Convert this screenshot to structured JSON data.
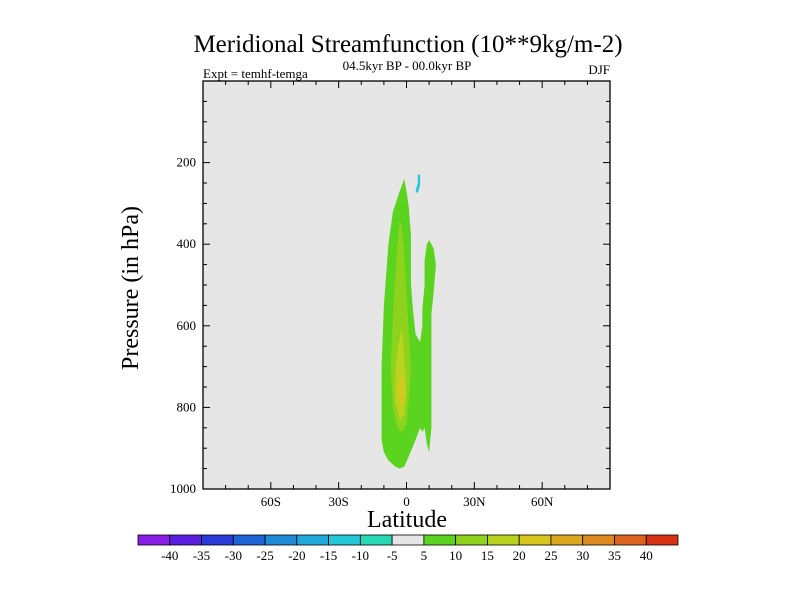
{
  "chart_data": {
    "type": "contour",
    "title": "Meridional Streamfunction (10**9kg/m-2)",
    "subtitle_left": "Expt = temhf-temga",
    "subtitle_center": "04.5kyr BP - 00.0kyr BP",
    "subtitle_right": "DJF",
    "xlabel": "Latitude",
    "ylabel": "Pressure (in hPa)",
    "xlim": [
      -90,
      90
    ],
    "ylim": [
      1000,
      0
    ],
    "x_ticks": [
      {
        "value": -60,
        "label": "60S"
      },
      {
        "value": -30,
        "label": "30S"
      },
      {
        "value": 0,
        "label": "0"
      },
      {
        "value": 30,
        "label": "30N"
      },
      {
        "value": 60,
        "label": "60N"
      }
    ],
    "y_ticks": [
      {
        "value": 200,
        "label": "200"
      },
      {
        "value": 400,
        "label": "400"
      },
      {
        "value": 600,
        "label": "600"
      },
      {
        "value": 800,
        "label": "800"
      },
      {
        "value": 1000,
        "label": "1000"
      }
    ],
    "colorbar": {
      "labels": [
        "-40",
        "-35",
        "-30",
        "-25",
        "-20",
        "-15",
        "-10",
        "-5",
        "5",
        "10",
        "15",
        "20",
        "25",
        "30",
        "35",
        "40"
      ],
      "colors": [
        "#8a1ee6",
        "#5a1ee0",
        "#2a3ad8",
        "#1e64d6",
        "#1e8ad8",
        "#20aadc",
        "#22c8d6",
        "#28d8b4",
        "#e6e6e6",
        "#5ad41e",
        "#8ed21e",
        "#b8d41e",
        "#d8c81e",
        "#dca81e",
        "#dc8a1e",
        "#dc641e",
        "#d83214"
      ]
    },
    "background_level_color": "#e6e6e6",
    "regions": [
      {
        "level": "5 to 10",
        "color": "#5ad41e",
        "points": [
          [
            -3,
            270
          ],
          [
            -1,
            240
          ],
          [
            0,
            270
          ],
          [
            1,
            310
          ],
          [
            2,
            380
          ],
          [
            2,
            500
          ],
          [
            3,
            570
          ],
          [
            4,
            620
          ],
          [
            6,
            640
          ],
          [
            7,
            600
          ],
          [
            7,
            560
          ],
          [
            8,
            500
          ],
          [
            8,
            440
          ],
          [
            9,
            400
          ],
          [
            10,
            390
          ],
          [
            12,
            410
          ],
          [
            13,
            450
          ],
          [
            12,
            520
          ],
          [
            11,
            570
          ],
          [
            11,
            680
          ],
          [
            11,
            780
          ],
          [
            11,
            850
          ],
          [
            10,
            910
          ],
          [
            9,
            890
          ],
          [
            8,
            850
          ],
          [
            7,
            860
          ],
          [
            6,
            850
          ],
          [
            4,
            880
          ],
          [
            1,
            920
          ],
          [
            -1,
            945
          ],
          [
            -3,
            950
          ],
          [
            -5,
            945
          ],
          [
            -8,
            930
          ],
          [
            -10,
            910
          ],
          [
            -11,
            880
          ],
          [
            -11,
            800
          ],
          [
            -11,
            700
          ],
          [
            -10,
            550
          ],
          [
            -8,
            400
          ],
          [
            -6,
            320
          ]
        ]
      },
      {
        "level": "10 to 15",
        "color": "#8ed21e",
        "points": [
          [
            -3,
            340
          ],
          [
            -2,
            360
          ],
          [
            -1,
            420
          ],
          [
            0,
            520
          ],
          [
            1,
            620
          ],
          [
            2,
            700
          ],
          [
            1,
            780
          ],
          [
            0,
            840
          ],
          [
            -2,
            860
          ],
          [
            -4,
            850
          ],
          [
            -6,
            800
          ],
          [
            -7,
            700
          ],
          [
            -6,
            580
          ],
          [
            -5,
            480
          ],
          [
            -4,
            400
          ]
        ]
      },
      {
        "level": "15 to 20",
        "color": "#b8d41e",
        "points": [
          [
            -2,
            600
          ],
          [
            -1,
            680
          ],
          [
            0,
            760
          ],
          [
            -1,
            820
          ],
          [
            -3,
            830
          ],
          [
            -5,
            790
          ],
          [
            -5,
            720
          ],
          [
            -4,
            660
          ]
        ]
      },
      {
        "level": "20 to 25",
        "color": "#d8c81e",
        "points": [
          [
            -2,
            720
          ],
          [
            -1,
            760
          ],
          [
            -2,
            800
          ],
          [
            -3,
            790
          ],
          [
            -4,
            760
          ],
          [
            -3,
            730
          ]
        ]
      },
      {
        "level": "-10 to -5",
        "color": "#22c8d6",
        "points": [
          [
            5,
            230
          ],
          [
            6,
            230
          ],
          [
            6,
            255
          ],
          [
            5,
            275
          ],
          [
            4,
            270
          ],
          [
            5,
            250
          ]
        ]
      }
    ]
  }
}
